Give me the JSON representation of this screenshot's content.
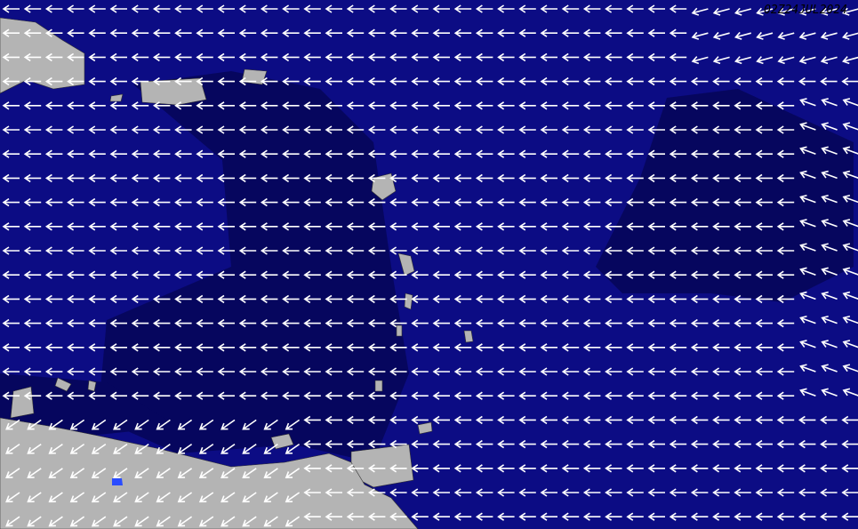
{
  "map": {
    "timestamp": "02Z24JUL2024",
    "arrow_direction": "westward",
    "colors": {
      "ocean": "#0c0c84",
      "ocean_dark": "#05055a",
      "land": "#b4b4b4",
      "arrows": "#ffffff",
      "lake": "#2a4cff"
    }
  }
}
